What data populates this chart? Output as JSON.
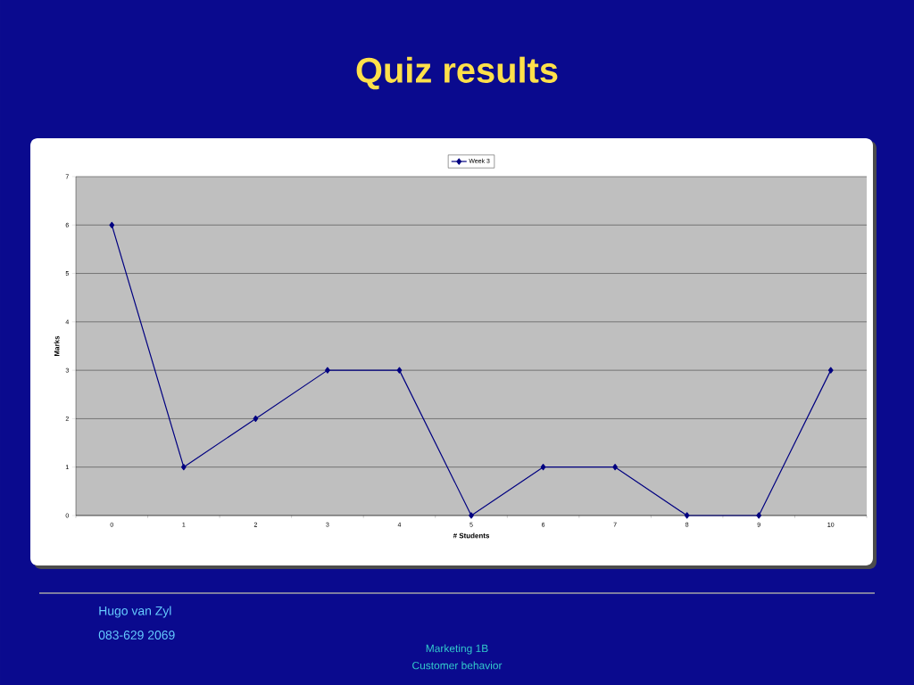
{
  "chart_data": {
    "type": "line",
    "title": "Quiz results",
    "xlabel": "# Students",
    "ylabel": "Marks",
    "categories": [
      "0",
      "1",
      "2",
      "3",
      "4",
      "5",
      "6",
      "7",
      "8",
      "9",
      "10"
    ],
    "series": [
      {
        "name": "Week 3",
        "color": "#000080",
        "values": [
          6,
          1,
          2,
          3,
          3,
          0,
          1,
          1,
          0,
          0,
          3
        ]
      }
    ],
    "ylim": [
      0,
      7
    ],
    "yticks": [
      0,
      1,
      2,
      3,
      4,
      5,
      6,
      7
    ],
    "grid": "y",
    "legend": "top",
    "marker": "diamond",
    "line_style": "solid",
    "annotations": [
      "Hugo van Zyl",
      "083-629 2069",
      "Marketing 1B",
      "Customer behavior"
    ]
  }
}
